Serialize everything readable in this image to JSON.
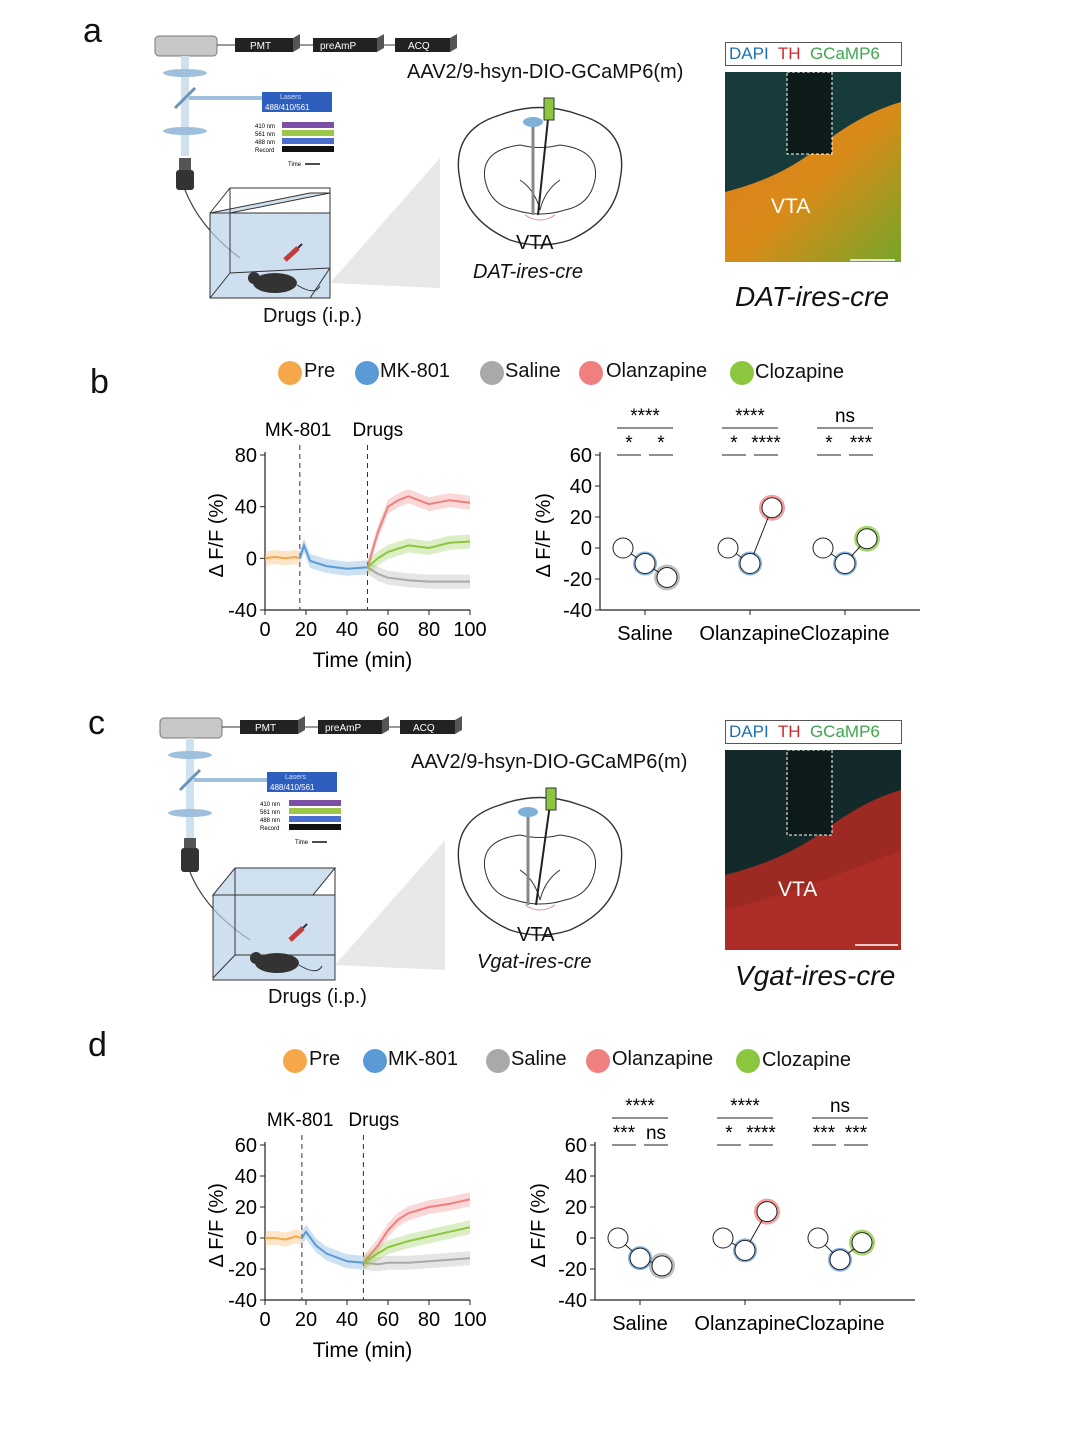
{
  "panels": {
    "a": {
      "label": "a",
      "setup": {
        "pmt": "PMT",
        "preamp": "preAmP",
        "acq": "ACQ",
        "lasers": "Lasers",
        "laser_wl": "488/410/561",
        "row1": "410 nm",
        "row2": "561 nm",
        "row3": "488 nm",
        "row4": "Record",
        "time": "Time",
        "drugs": "Drugs (i.p.)"
      },
      "virus": "AAV2/9-hsyn-DIO-GCaMP6(m)",
      "region": "VTA",
      "mouse_line": "DAT-ires-cre",
      "micro": {
        "dapi": "DAPI",
        "th": "TH",
        "gcamp": "GCaMP6",
        "vta": "VTA",
        "line": "DAT-ires-cre"
      }
    },
    "b": {
      "label": "b",
      "legend": [
        "Pre",
        "MK-801",
        "Saline",
        "Olanzapine",
        "Clozapine"
      ],
      "markers": {
        "mk801": "MK-801",
        "drugs": "Drugs"
      },
      "ylabel": "Δ F/F (%)",
      "xlabel": "Time (min)",
      "groups": [
        "Saline",
        "Olanzapine",
        "Clozapine"
      ],
      "sig_top": [
        "****",
        "****",
        "ns"
      ],
      "sig_left": [
        "*",
        "*",
        "*"
      ],
      "sig_right": [
        "*",
        "****",
        "***"
      ]
    },
    "c": {
      "label": "c",
      "setup": {
        "pmt": "PMT",
        "preamp": "preAmP",
        "acq": "ACQ",
        "lasers": "Lasers",
        "laser_wl": "488/410/561",
        "row1": "410 nm",
        "row2": "561 nm",
        "row3": "488 nm",
        "row4": "Record",
        "time": "Time",
        "drugs": "Drugs (i.p.)"
      },
      "virus": "AAV2/9-hsyn-DIO-GCaMP6(m)",
      "region": "VTA",
      "mouse_line": "Vgat-ires-cre",
      "micro": {
        "dapi": "DAPI",
        "th": "TH",
        "gcamp": "GCaMP6",
        "vta": "VTA",
        "line": "Vgat-ires-cre"
      }
    },
    "d": {
      "label": "d",
      "legend": [
        "Pre",
        "MK-801",
        "Saline",
        "Olanzapine",
        "Clozapine"
      ],
      "markers": {
        "mk801": "MK-801",
        "drugs": "Drugs"
      },
      "ylabel": "Δ F/F (%)",
      "xlabel": "Time (min)",
      "groups": [
        "Saline",
        "Olanzapine",
        "Clozapine"
      ],
      "sig_top": [
        "****",
        "****",
        "ns"
      ],
      "sig_left": [
        "***",
        "*",
        "***"
      ],
      "sig_right": [
        "ns",
        "****",
        "***"
      ]
    }
  },
  "colors": {
    "pre": "#f5a84a",
    "mk801": "#5b9bd5",
    "saline": "#a9a9a9",
    "olanzapine": "#f07f7f",
    "clozapine": "#8cc63f"
  },
  "chart_data": [
    {
      "type": "line",
      "panel": "b",
      "xlim": [
        0,
        100
      ],
      "ylim": [
        -40,
        80
      ],
      "xticks": [
        0,
        20,
        40,
        60,
        80,
        100
      ],
      "yticks": [
        -40,
        0,
        40,
        80
      ],
      "series": [
        {
          "name": "Pre",
          "x": [
            0,
            5,
            10,
            15,
            17
          ],
          "y": [
            0,
            1,
            0,
            1,
            0
          ]
        },
        {
          "name": "MK-801",
          "x": [
            17,
            19,
            22,
            30,
            40,
            50
          ],
          "y": [
            0,
            10,
            -2,
            -6,
            -8,
            -7
          ]
        },
        {
          "name": "Saline",
          "x": [
            50,
            55,
            60,
            70,
            80,
            90,
            100
          ],
          "y": [
            -7,
            -12,
            -15,
            -17,
            -18,
            -18,
            -18
          ]
        },
        {
          "name": "Olanzapine",
          "x": [
            50,
            55,
            60,
            65,
            70,
            80,
            90,
            100
          ],
          "y": [
            -7,
            20,
            40,
            45,
            48,
            42,
            45,
            43
          ]
        },
        {
          "name": "Clozapine",
          "x": [
            50,
            55,
            60,
            70,
            80,
            90,
            100
          ],
          "y": [
            -7,
            0,
            5,
            10,
            8,
            12,
            13
          ]
        }
      ]
    },
    {
      "type": "scatter",
      "panel": "b",
      "ylim": [
        -40,
        60
      ],
      "yticks": [
        -40,
        -20,
        0,
        20,
        40,
        60
      ],
      "categories": [
        "Saline",
        "Olanzapine",
        "Clozapine"
      ],
      "series": [
        {
          "name": "Pre",
          "values": [
            0,
            0,
            0
          ]
        },
        {
          "name": "MK-801",
          "values": [
            -10,
            -10,
            -10
          ]
        },
        {
          "name": "Drug",
          "values": [
            -19,
            26,
            6
          ]
        }
      ]
    },
    {
      "type": "line",
      "panel": "d",
      "xlim": [
        0,
        100
      ],
      "ylim": [
        -40,
        60
      ],
      "xticks": [
        0,
        20,
        40,
        60,
        80,
        100
      ],
      "yticks": [
        -40,
        -20,
        0,
        20,
        40,
        60
      ],
      "series": [
        {
          "name": "Pre",
          "x": [
            0,
            5,
            10,
            15,
            18
          ],
          "y": [
            0,
            0,
            -1,
            1,
            0
          ]
        },
        {
          "name": "MK-801",
          "x": [
            18,
            20,
            25,
            30,
            40,
            48
          ],
          "y": [
            0,
            4,
            -5,
            -10,
            -15,
            -16
          ]
        },
        {
          "name": "Saline",
          "x": [
            48,
            55,
            60,
            70,
            80,
            90,
            100
          ],
          "y": [
            -16,
            -17,
            -16,
            -16,
            -15,
            -14,
            -13
          ]
        },
        {
          "name": "Olanzapine",
          "x": [
            48,
            55,
            60,
            65,
            70,
            80,
            90,
            100
          ],
          "y": [
            -16,
            -5,
            5,
            12,
            16,
            20,
            22,
            25
          ]
        },
        {
          "name": "Clozapine",
          "x": [
            48,
            55,
            60,
            70,
            80,
            90,
            100
          ],
          "y": [
            -16,
            -10,
            -6,
            -2,
            1,
            4,
            7
          ]
        }
      ]
    },
    {
      "type": "scatter",
      "panel": "d",
      "ylim": [
        -40,
        60
      ],
      "yticks": [
        -40,
        -20,
        0,
        20,
        40,
        60
      ],
      "categories": [
        "Saline",
        "Olanzapine",
        "Clozapine"
      ],
      "series": [
        {
          "name": "Pre",
          "values": [
            0,
            0,
            0
          ]
        },
        {
          "name": "MK-801",
          "values": [
            -13,
            -8,
            -14
          ]
        },
        {
          "name": "Drug",
          "values": [
            -18,
            17,
            -3
          ]
        }
      ]
    }
  ]
}
